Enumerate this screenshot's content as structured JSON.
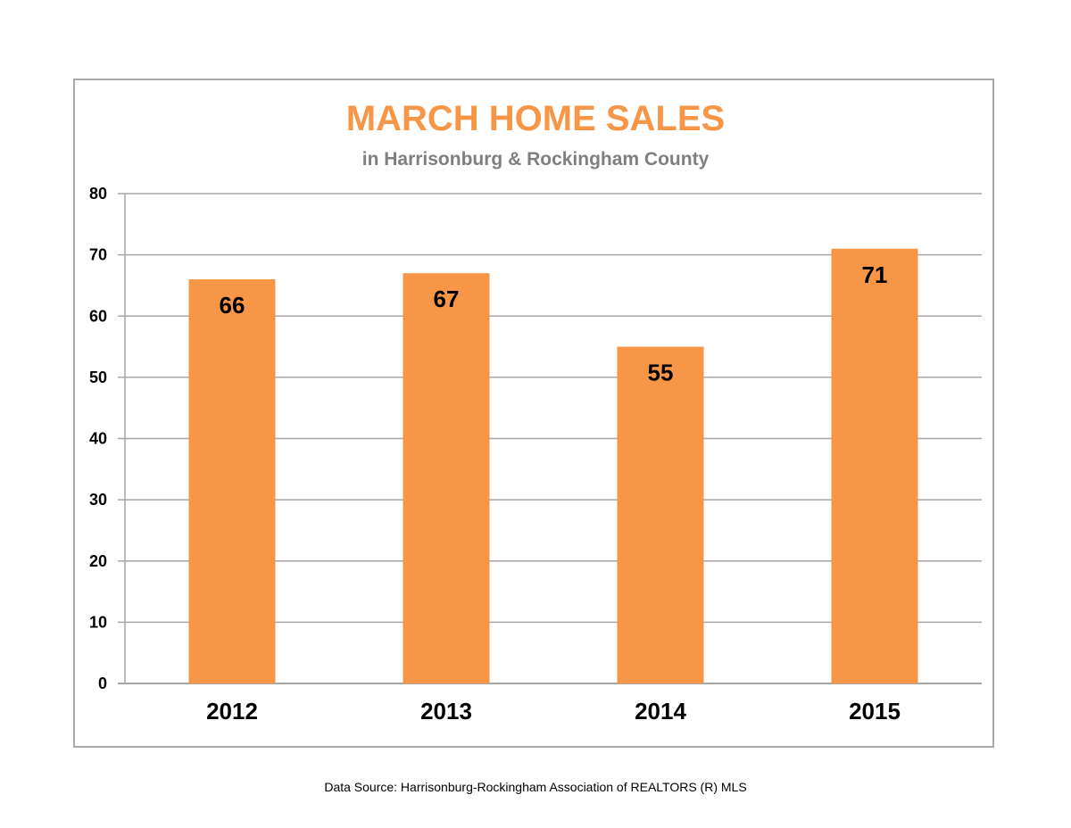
{
  "chart_data": {
    "type": "bar",
    "title": "MARCH HOME SALES",
    "subtitle": "in Harrisonburg & Rockingham County",
    "categories": [
      "2012",
      "2013",
      "2014",
      "2015"
    ],
    "values": [
      66,
      67,
      55,
      71
    ],
    "ylim": [
      0,
      80
    ],
    "yticks": [
      0,
      10,
      20,
      30,
      40,
      50,
      60,
      70,
      80
    ],
    "xlabel": "",
    "ylabel": "",
    "grid": true,
    "legend": "none",
    "data_labels": [
      "66",
      "67",
      "55",
      "71"
    ]
  },
  "colors": {
    "bar": "#f79646",
    "title": "#f79646",
    "subtitle": "#7f7f7f",
    "grid": "#a6a6a6"
  },
  "source_note": "Data Source: Harrisonburg-Rockingham Association of REALTORS (R) MLS"
}
